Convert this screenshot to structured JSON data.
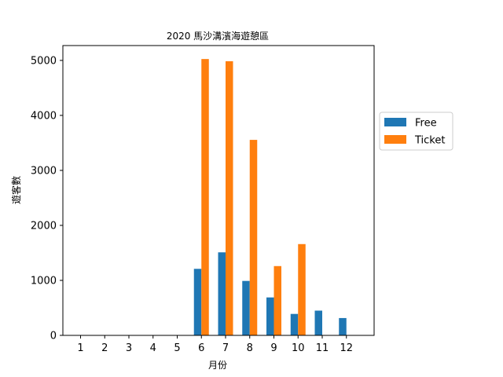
{
  "chart_data": {
    "type": "bar",
    "title": "2020 馬沙溝濱海遊憩區",
    "xlabel": "月份",
    "ylabel": "遊客數",
    "categories": [
      "1",
      "2",
      "3",
      "4",
      "5",
      "6",
      "7",
      "8",
      "9",
      "10",
      "11",
      "12"
    ],
    "series": [
      {
        "name": "Free",
        "color": "#1f77b4",
        "values": [
          0,
          0,
          0,
          0,
          0,
          1210,
          1510,
          990,
          690,
          390,
          450,
          315
        ]
      },
      {
        "name": "Ticket",
        "color": "#ff7f0e",
        "values": [
          0,
          0,
          0,
          0,
          0,
          5025,
          4985,
          3555,
          1260,
          1660,
          0,
          0
        ]
      }
    ],
    "ylim": [
      0,
      5270
    ],
    "yticks": [
      0,
      1000,
      2000,
      3000,
      4000,
      5000
    ],
    "legend_position": "right-center",
    "grid": false
  }
}
